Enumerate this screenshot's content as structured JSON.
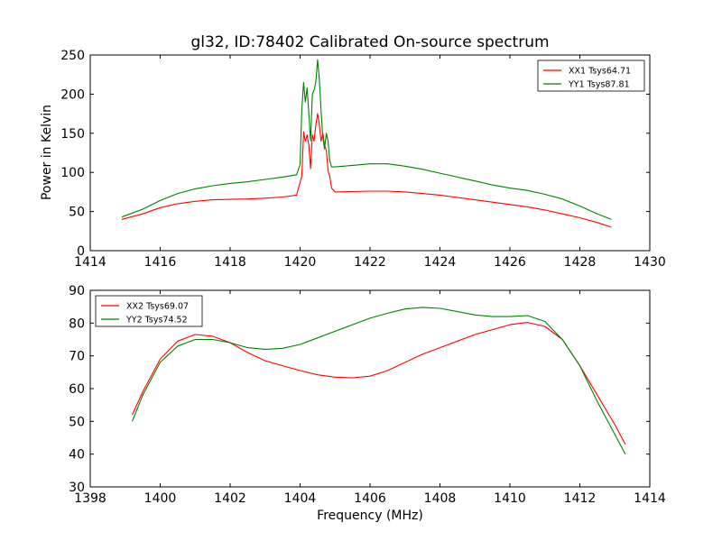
{
  "chart_data": [
    {
      "type": "line",
      "title": "gl32, ID:78402 Calibrated On-source spectrum",
      "xlabel": "",
      "ylabel": "Power in Kelvin",
      "xlim": [
        1414,
        1430
      ],
      "ylim": [
        0,
        250
      ],
      "xticks": [
        "1414",
        "1416",
        "1418",
        "1420",
        "1422",
        "1424",
        "1426",
        "1428",
        "1430"
      ],
      "yticks": [
        "0",
        "50",
        "100",
        "150",
        "200",
        "250"
      ],
      "legend_position": "top-right",
      "grid": false,
      "series": [
        {
          "name": "XX1 Tsys64.71",
          "color": "#ff0000",
          "x": [
            1414.9,
            1415.5,
            1416.0,
            1416.5,
            1417.0,
            1417.5,
            1418.0,
            1418.5,
            1419.0,
            1419.5,
            1419.9,
            1420.05,
            1420.1,
            1420.15,
            1420.2,
            1420.25,
            1420.3,
            1420.35,
            1420.4,
            1420.45,
            1420.5,
            1420.55,
            1420.6,
            1420.65,
            1420.7,
            1420.75,
            1420.8,
            1420.85,
            1420.9,
            1421.0,
            1421.5,
            1422.0,
            1422.5,
            1423.0,
            1423.5,
            1424.0,
            1424.5,
            1425.0,
            1425.5,
            1426.0,
            1426.5,
            1427.0,
            1427.5,
            1428.0,
            1428.5,
            1428.9
          ],
          "y": [
            40,
            47,
            55,
            60,
            63,
            65,
            65.5,
            66,
            67,
            68.5,
            71,
            95,
            152,
            140,
            148,
            135,
            105,
            148,
            140,
            160,
            175,
            162,
            140,
            150,
            135,
            128,
            102,
            95,
            80,
            75,
            75.5,
            76,
            76,
            75,
            73,
            71,
            68,
            65,
            62,
            59,
            56,
            52,
            47,
            42,
            36,
            30
          ]
        },
        {
          "name": "YY1 Tsys87.81",
          "color": "#008000",
          "x": [
            1414.9,
            1415.5,
            1416.0,
            1416.5,
            1417.0,
            1417.5,
            1418.0,
            1418.5,
            1419.0,
            1419.5,
            1419.9,
            1420.0,
            1420.05,
            1420.1,
            1420.15,
            1420.2,
            1420.25,
            1420.3,
            1420.35,
            1420.4,
            1420.45,
            1420.5,
            1420.55,
            1420.6,
            1420.65,
            1420.7,
            1420.75,
            1420.8,
            1420.85,
            1420.9,
            1421.0,
            1421.5,
            1422.0,
            1422.5,
            1423.0,
            1423.5,
            1424.0,
            1424.5,
            1425.0,
            1425.5,
            1426.0,
            1426.5,
            1427.0,
            1427.5,
            1428.0,
            1428.5,
            1428.9
          ],
          "y": [
            43,
            53,
            64,
            73,
            79,
            83,
            86,
            88,
            91,
            94,
            97,
            110,
            180,
            215,
            190,
            208,
            175,
            140,
            200,
            205,
            215,
            244,
            220,
            180,
            145,
            130,
            150,
            140,
            115,
            107,
            107,
            109,
            111,
            111,
            108,
            104,
            99,
            94,
            89,
            84,
            80,
            77,
            72,
            66,
            57,
            47,
            40
          ]
        }
      ]
    },
    {
      "type": "line",
      "title": "",
      "xlabel": "Frequency (MHz)",
      "ylabel": "",
      "xlim": [
        1398,
        1414
      ],
      "ylim": [
        30,
        90
      ],
      "xticks": [
        "1398",
        "1400",
        "1402",
        "1404",
        "1406",
        "1408",
        "1410",
        "1412",
        "1414"
      ],
      "yticks": [
        "30",
        "40",
        "50",
        "60",
        "70",
        "80",
        "90"
      ],
      "legend_position": "top-left",
      "grid": false,
      "series": [
        {
          "name": "XX2 Tsys69.07",
          "color": "#ff0000",
          "x": [
            1399.2,
            1399.5,
            1400.0,
            1400.5,
            1401.0,
            1401.5,
            1402.0,
            1402.5,
            1403.0,
            1403.5,
            1404.0,
            1404.5,
            1405.0,
            1405.5,
            1406.0,
            1406.5,
            1407.0,
            1407.5,
            1408.0,
            1408.5,
            1409.0,
            1409.5,
            1410.0,
            1410.5,
            1411.0,
            1411.5,
            1412.0,
            1412.5,
            1413.0,
            1413.3
          ],
          "y": [
            52,
            59,
            69,
            74.5,
            76.5,
            76,
            74,
            71,
            68.5,
            67,
            65.5,
            64.2,
            63.5,
            63.3,
            63.8,
            65.5,
            68,
            70.5,
            72.5,
            74.5,
            76.5,
            78,
            79.5,
            80.2,
            79,
            75,
            67,
            58,
            49,
            43
          ]
        },
        {
          "name": "YY2 Tsys74.52",
          "color": "#008000",
          "x": [
            1399.2,
            1399.5,
            1400.0,
            1400.5,
            1401.0,
            1401.5,
            1402.0,
            1402.5,
            1403.0,
            1403.5,
            1404.0,
            1404.5,
            1405.0,
            1405.5,
            1406.0,
            1406.5,
            1407.0,
            1407.5,
            1408.0,
            1408.5,
            1409.0,
            1409.5,
            1410.0,
            1410.5,
            1411.0,
            1411.5,
            1412.0,
            1412.5,
            1413.0,
            1413.3
          ],
          "y": [
            50,
            58,
            68,
            73,
            75,
            75,
            74,
            72.5,
            72,
            72.3,
            73.5,
            75.5,
            77.5,
            79.5,
            81.5,
            83,
            84.3,
            84.8,
            84.5,
            83.5,
            82.5,
            82,
            82,
            82.3,
            80.5,
            75,
            67,
            56,
            46,
            40
          ]
        }
      ]
    }
  ]
}
